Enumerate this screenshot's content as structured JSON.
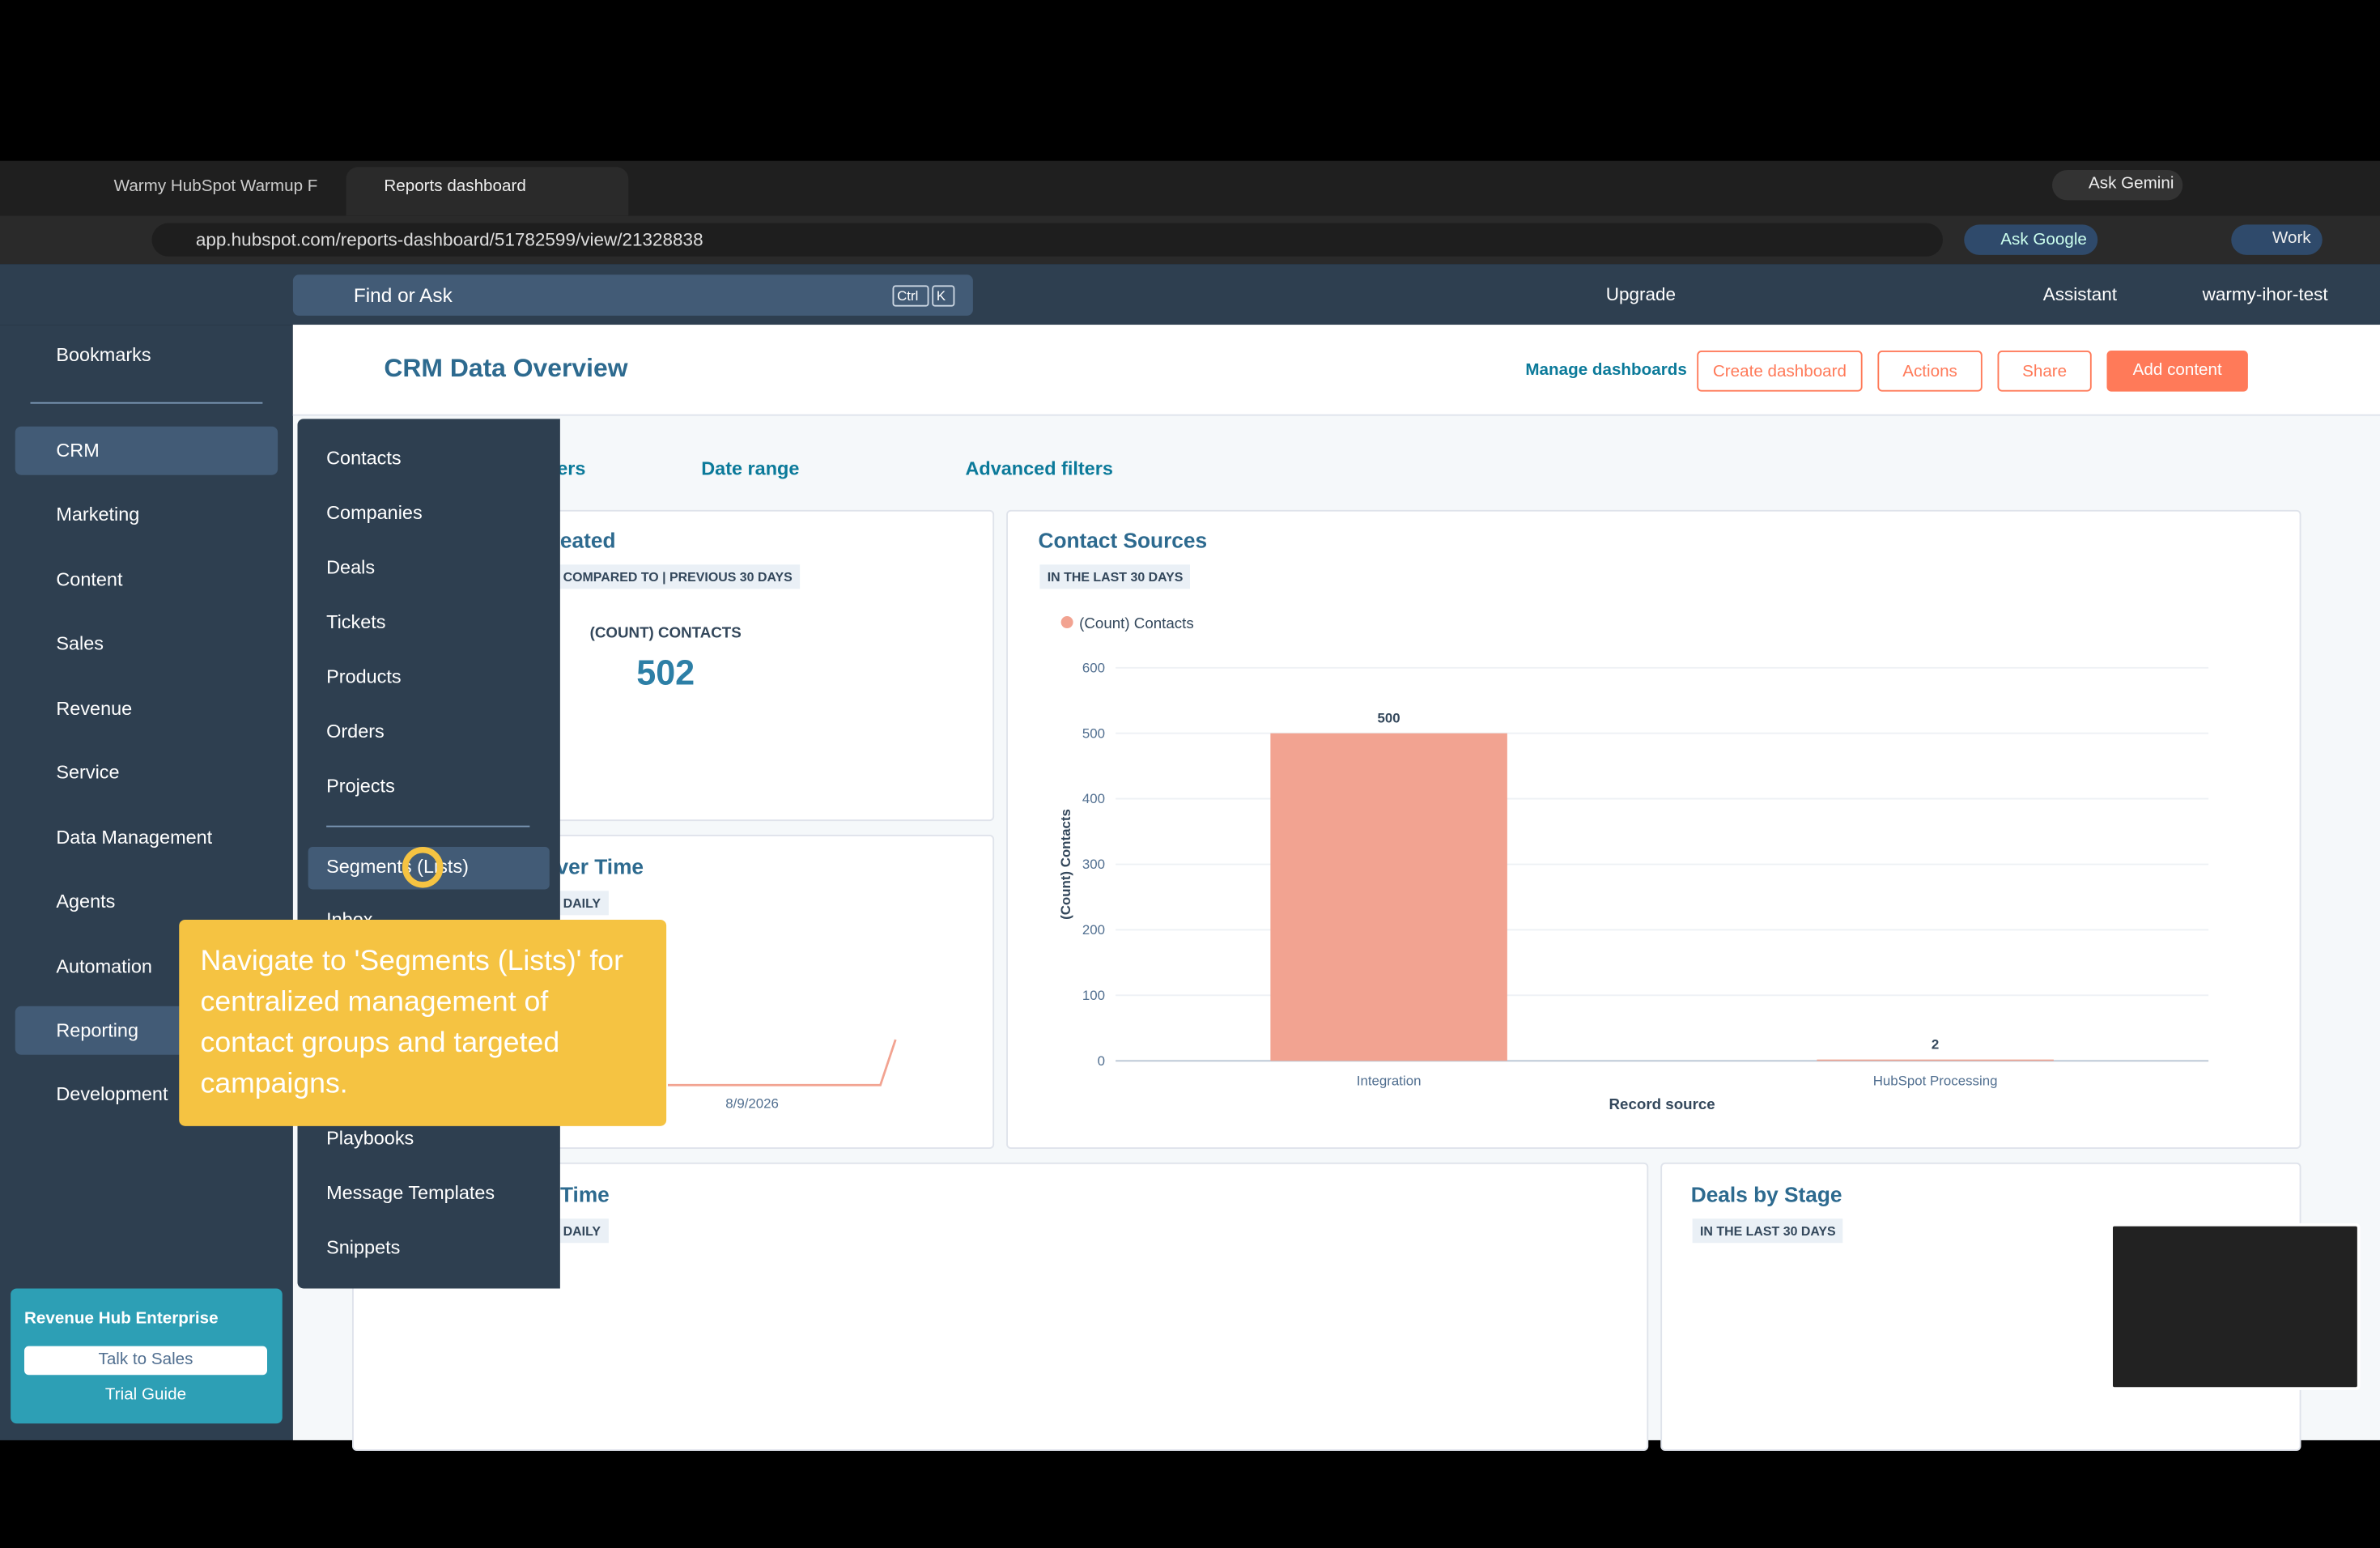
{
  "browser": {
    "tabs": [
      "Warmy HubSpot Warmup F",
      "Reports dashboard"
    ],
    "url": "app.hubspot.com/reports-dashboard/51782599/view/21328838",
    "ask_gemini": "Ask Gemini",
    "ask_google": "Ask Google",
    "profile": "Work"
  },
  "topbar": {
    "search": "Find or Ask",
    "shortcut": [
      "Ctrl",
      "K"
    ],
    "upgrade": "Upgrade",
    "assistant": "Assistant",
    "account": "warmy-ihor-test"
  },
  "sidebar": {
    "items": [
      "Bookmarks",
      "CRM",
      "Marketing",
      "Content",
      "Sales",
      "Revenue",
      "Service",
      "Data Management",
      "Agents",
      "Automation",
      "Reporting",
      "Development"
    ],
    "promo": {
      "title": "Revenue Hub Enterprise",
      "button": "Talk to Sales",
      "link": "Trial Guide"
    }
  },
  "crm_menu": [
    "Contacts",
    "Companies",
    "Deals",
    "Tickets",
    "Products",
    "Orders",
    "Projects",
    "Segments (Lists)",
    "Inbox",
    "Playbooks",
    "Message Templates",
    "Snippets"
  ],
  "dashboard": {
    "title": "CRM Data Overview",
    "manage": "Manage dashboards",
    "buttons": [
      "Create dashboard",
      "Actions",
      "Share"
    ],
    "add_content": "Add content",
    "filters": [
      "Owners",
      "Date range",
      "Advanced filters"
    ],
    "cards": [
      {
        "title": "Contacts created",
        "tag": "COMPARED TO | PREVIOUS 30 DAYS",
        "metric_label": "(COUNT) CONTACTS",
        "metric": 502
      },
      {
        "title": "Contacts Over Time",
        "tag": "DAILY",
        "x_label": "8/9/2026"
      },
      {
        "title": "Deals Over Time",
        "tag": "DAILY"
      },
      {
        "title": "Deals by Stage",
        "tag": "IN THE LAST 30 DAYS"
      }
    ]
  },
  "chart_data": {
    "type": "bar",
    "title": "Contact Sources",
    "subtitle": "IN THE LAST 30 DAYS",
    "legend": "(Count) Contacts",
    "categories": [
      "Integration",
      "HubSpot Processing"
    ],
    "values": [
      500,
      2
    ],
    "color": "#f2a391",
    "ylim": [
      0,
      600
    ],
    "yticks": [
      0,
      100,
      200,
      300,
      400,
      500,
      600
    ],
    "y_label": "(Count) Contacts",
    "x_label": "Record source"
  },
  "tooltip": "Navigate to 'Segments (Lists)' for centralized management of contact groups and targeted campaigns."
}
